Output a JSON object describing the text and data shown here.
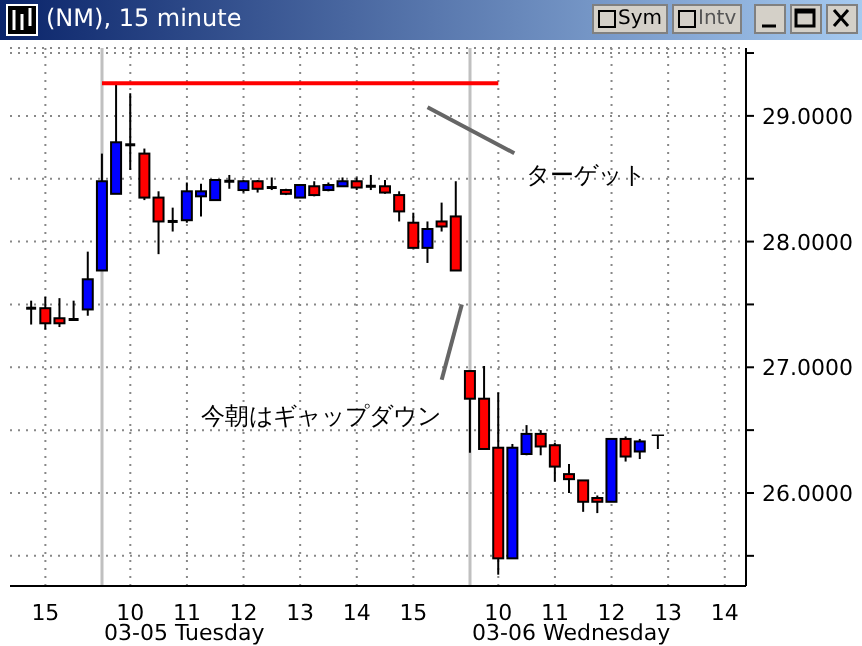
{
  "chart_data": {
    "type": "candlestick",
    "title": "(NM), 15 minute",
    "categories": [
      null,
      null,
      "15",
      null,
      null,
      null,
      null,
      null,
      "10",
      null,
      null,
      null,
      "11",
      null,
      null,
      null,
      "12",
      null,
      null,
      null,
      "13",
      null,
      null,
      null,
      "14",
      null,
      null,
      null,
      "15",
      null,
      null,
      null,
      null,
      null,
      "10",
      null,
      null,
      null,
      "11",
      null,
      null,
      null,
      "12",
      null,
      null,
      null,
      "13",
      null,
      null,
      null,
      "14",
      null
    ],
    "ohlc": [
      null,
      [
        27.47,
        27.53,
        27.34,
        27.47
      ],
      [
        27.47,
        27.56,
        27.3,
        27.35
      ],
      [
        27.39,
        27.55,
        27.32,
        27.35
      ],
      [
        27.38,
        27.53,
        27.37,
        27.38
      ],
      [
        27.46,
        27.92,
        27.41,
        27.7
      ],
      [
        27.77,
        28.7,
        27.77,
        28.48
      ],
      [
        28.38,
        29.27,
        28.38,
        28.79
      ],
      [
        28.77,
        29.18,
        28.57,
        28.77
      ],
      [
        28.7,
        28.74,
        28.33,
        28.35
      ],
      [
        28.35,
        28.4,
        27.9,
        28.16
      ],
      [
        28.16,
        28.27,
        28.08,
        28.16
      ],
      [
        28.17,
        28.47,
        28.15,
        28.4
      ],
      [
        28.36,
        28.46,
        28.2,
        28.4
      ],
      [
        28.33,
        28.49,
        28.33,
        28.49
      ],
      [
        28.48,
        28.53,
        28.42,
        28.48
      ],
      [
        28.41,
        28.49,
        28.39,
        28.48
      ],
      [
        28.48,
        28.49,
        28.39,
        28.42
      ],
      [
        28.43,
        28.51,
        28.41,
        28.43
      ],
      [
        28.41,
        28.42,
        28.37,
        28.38
      ],
      [
        28.35,
        28.45,
        28.35,
        28.45
      ],
      [
        28.44,
        28.48,
        28.36,
        28.37
      ],
      [
        28.41,
        28.47,
        28.4,
        28.45
      ],
      [
        28.44,
        28.51,
        28.44,
        28.48
      ],
      [
        28.48,
        28.51,
        28.41,
        28.43
      ],
      [
        28.44,
        28.53,
        28.41,
        28.44
      ],
      [
        28.44,
        28.49,
        28.38,
        28.39
      ],
      [
        28.37,
        28.4,
        28.16,
        28.24
      ],
      [
        28.15,
        28.23,
        27.95,
        27.95
      ],
      [
        27.95,
        28.16,
        27.83,
        28.1
      ],
      [
        28.16,
        28.31,
        28.08,
        28.12
      ],
      [
        28.2,
        28.48,
        27.77,
        27.77
      ],
      [
        26.97,
        26.97,
        26.32,
        26.75
      ],
      [
        26.75,
        27.01,
        26.35,
        26.35
      ],
      [
        26.36,
        26.8,
        25.35,
        25.48
      ],
      [
        25.48,
        26.39,
        25.48,
        26.36
      ],
      [
        26.31,
        26.54,
        26.3,
        26.47
      ],
      [
        26.47,
        26.5,
        26.3,
        26.37
      ],
      [
        26.38,
        26.4,
        26.09,
        26.21
      ],
      [
        26.15,
        26.23,
        26.0,
        26.11
      ],
      [
        26.1,
        26.1,
        25.85,
        25.93
      ],
      [
        25.96,
        25.98,
        25.84,
        25.93
      ],
      [
        25.93,
        26.43,
        25.93,
        26.43
      ],
      [
        26.43,
        26.45,
        26.25,
        26.29
      ],
      [
        26.33,
        26.43,
        26.27,
        26.41
      ],
      null,
      null,
      null,
      null,
      null,
      null,
      null
    ],
    "colors": [
      null,
      "#000000",
      "#ff0000",
      "#ff0000",
      "#000000",
      "#0000ff",
      "#0000ff",
      "#0000ff",
      "#000000",
      "#ff0000",
      "#ff0000",
      "#000000",
      "#0000ff",
      "#0000ff",
      "#0000ff",
      "#000000",
      "#0000ff",
      "#ff0000",
      "#000000",
      "#ff0000",
      "#0000ff",
      "#ff0000",
      "#0000ff",
      "#0000ff",
      "#ff0000",
      "#000000",
      "#ff0000",
      "#ff0000",
      "#ff0000",
      "#0000ff",
      "#ff0000",
      "#ff0000",
      "#ff0000",
      "#ff0000",
      "#ff0000",
      "#0000ff",
      "#0000ff",
      "#ff0000",
      "#ff0000",
      "#ff0000",
      "#ff0000",
      "#ff0000",
      "#0000ff",
      "#ff0000",
      "#0000ff",
      null,
      null,
      null,
      null,
      null,
      null,
      null
    ],
    "ylim": [
      25.26,
      29.54
    ],
    "yticks": [
      {
        "value": 25.5,
        "label": null
      },
      {
        "value": 26,
        "label": "26.0000"
      },
      {
        "value": 26.5,
        "label": null
      },
      {
        "value": 27,
        "label": "27.0000"
      },
      {
        "value": 27.5,
        "label": null
      },
      {
        "value": 28,
        "label": "28.0000"
      },
      {
        "value": 28.5,
        "label": null
      },
      {
        "value": 29,
        "label": "29.0000"
      },
      {
        "value": 29.5,
        "label": null
      }
    ],
    "grid": true,
    "ref_lines": [
      {
        "axis": "y",
        "value": 29.26,
        "color": "#ff0000"
      }
    ],
    "annotations": [
      "今朝はギャップダウン",
      "T",
      "Sym",
      "Intv",
      "03-05 Tuesday",
      "03-06 Wednesday",
      "ターゲット"
    ]
  }
}
